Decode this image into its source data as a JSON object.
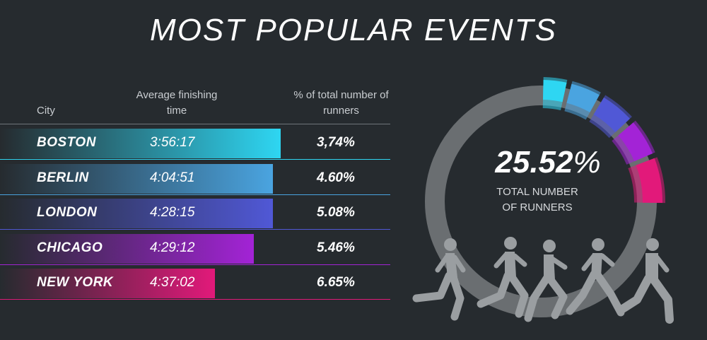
{
  "title": "MOST POPULAR EVENTS",
  "headers": {
    "city": "City",
    "time": "Average finishing time",
    "pct": "% of total number of runners"
  },
  "chart_data": {
    "type": "bar",
    "title": "MOST POPULAR EVENTS",
    "categories": [
      "BOSTON",
      "BERLIN",
      "LONDON",
      "CHICAGO",
      "NEW YORK"
    ],
    "series": [
      {
        "name": "Average finishing time",
        "values": [
          "3:56:17",
          "4:04:51",
          "4:28:15",
          "4:29:12",
          "4:37:02"
        ]
      },
      {
        "name": "% of total number of runners",
        "values": [
          "3,74%",
          "4.60%",
          "5.08%",
          "5.46%",
          "6.65%"
        ]
      }
    ],
    "percent_values": [
      3.74,
      4.6,
      5.08,
      5.46,
      6.65
    ],
    "bar_extent": [
      0.72,
      0.7,
      0.7,
      0.65,
      0.55
    ],
    "colors": [
      "#2ed6f2",
      "#4aa4e0",
      "#5058d6",
      "#a323d6",
      "#e2197a"
    ],
    "donut": {
      "total_label": "25.52%",
      "caption": "TOTAL NUMBER OF RUNNERS",
      "total_fraction": 0.2552,
      "ring_color": "#6a6e71"
    }
  },
  "rows": [
    {
      "city": "BOSTON",
      "time": "3:56:17",
      "pct": "3,74%"
    },
    {
      "city": "BERLIN",
      "time": "4:04:51",
      "pct": "4.60%"
    },
    {
      "city": "LONDON",
      "time": "4:28:15",
      "pct": "5.08%"
    },
    {
      "city": "CHICAGO",
      "time": "4:29:12",
      "pct": "5.46%"
    },
    {
      "city": "NEW YORK",
      "time": "4:37:02",
      "pct": "6.65%"
    }
  ],
  "donut": {
    "value": "25.52",
    "unit": "%",
    "caption_line1": "TOTAL NUMBER",
    "caption_line2": "OF RUNNERS"
  }
}
